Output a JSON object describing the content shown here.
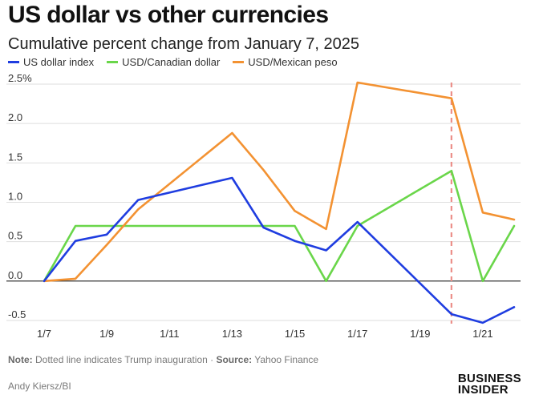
{
  "header": {
    "title": "US dollar vs other currencies",
    "subtitle": "Cumulative percent change from January 7, 2025"
  },
  "footer": {
    "note_label": "Note:",
    "note_text": " Dotted line indicates Trump inauguration · ",
    "source_label": "Source:",
    "source_text": " Yahoo Finance",
    "credit": "Andy Kiersz/BI",
    "brand_line1": "BUSINESS",
    "brand_line2": "INSIDER"
  },
  "chart_data": {
    "type": "line",
    "title": "US dollar vs other currencies",
    "subtitle": "Cumulative percent change from January 7, 2025",
    "xlabel": "",
    "ylabel": "",
    "x": [
      7,
      8,
      9,
      10,
      13,
      14,
      15,
      16,
      17,
      20,
      21,
      22
    ],
    "xlim": [
      7,
      22
    ],
    "x_ticks": [
      7,
      9,
      11,
      13,
      15,
      17,
      19,
      21
    ],
    "x_tick_labels": [
      "1/7",
      "1/9",
      "1/11",
      "1/13",
      "1/15",
      "1/17",
      "1/19",
      "1/21"
    ],
    "ylim": [
      -0.5,
      2.5
    ],
    "y_ticks": [
      2.5,
      2.0,
      1.5,
      1.0,
      0.5,
      0.0,
      -0.5
    ],
    "y_tick_labels": [
      "2.5%",
      "2.0",
      "1.5",
      "1.0",
      "0.5",
      "0.0",
      "-0.5"
    ],
    "grid": true,
    "legend_position": "top-left",
    "inauguration_x": 20,
    "series": [
      {
        "name": "US dollar index",
        "color": "#1f3de0",
        "x": [
          7,
          8,
          9,
          10,
          13,
          14,
          15,
          16,
          17,
          20,
          21,
          22
        ],
        "values": [
          0.0,
          0.51,
          0.59,
          1.03,
          1.31,
          0.68,
          0.51,
          0.39,
          0.75,
          -0.42,
          -0.53,
          -0.33
        ]
      },
      {
        "name": "USD/Canadian dollar",
        "color": "#6ad64a",
        "x": [
          7,
          8,
          9,
          10,
          13,
          14,
          15,
          16,
          17,
          20,
          21,
          22
        ],
        "values": [
          0.0,
          0.7,
          0.7,
          0.7,
          0.7,
          0.7,
          0.7,
          0.0,
          0.7,
          1.4,
          0.0,
          0.7
        ]
      },
      {
        "name": "USD/Mexican peso",
        "color": "#f39232",
        "x": [
          7,
          8,
          9,
          10,
          13,
          14,
          15,
          16,
          17,
          20,
          21,
          22
        ],
        "values": [
          0.0,
          0.03,
          0.46,
          0.91,
          1.88,
          1.41,
          0.89,
          0.66,
          2.52,
          2.32,
          0.87,
          0.78
        ]
      }
    ]
  }
}
